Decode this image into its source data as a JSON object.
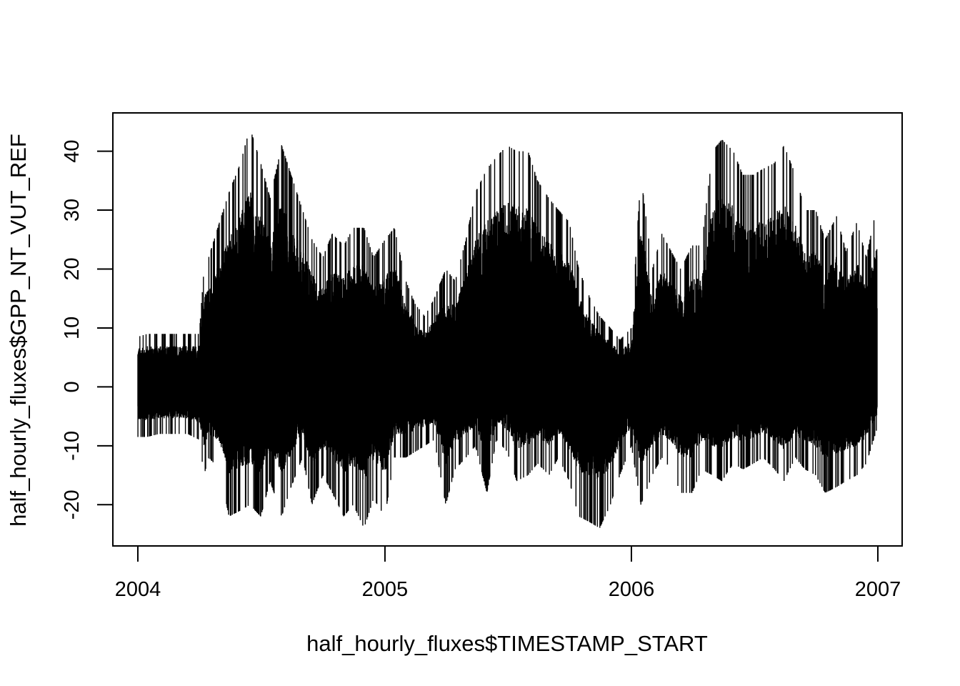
{
  "chart_data": {
    "type": "line",
    "title": "",
    "xlabel": "half_hourly_fluxes$TIMESTAMP_START",
    "ylabel": "half_hourly_fluxes$GPP_NT_VUT_REF",
    "xlim": [
      "2003-11-25",
      "2007-02-06"
    ],
    "ylim": [
      -27.0,
      46.5
    ],
    "x_ticks": [
      {
        "value": "2004-01-01",
        "label": "2004"
      },
      {
        "value": "2005-01-01",
        "label": "2005"
      },
      {
        "value": "2006-01-01",
        "label": "2006"
      },
      {
        "value": "2007-01-01",
        "label": "2007"
      }
    ],
    "y_ticks": [
      -20,
      -10,
      0,
      10,
      20,
      30,
      40
    ],
    "grid": false,
    "legend": "none",
    "color": "#000000",
    "series": [
      {
        "values_note_free": true,
        "x": [
          "2004-01-01",
          "2004-01-15",
          "2004-02-01",
          "2004-02-15",
          "2004-03-01",
          "2004-03-15",
          "2004-04-01",
          "2004-04-08",
          "2004-04-15",
          "2004-05-01",
          "2004-05-15",
          "2004-06-01",
          "2004-06-15",
          "2004-07-01",
          "2004-07-15",
          "2004-08-01",
          "2004-08-15",
          "2004-09-01",
          "2004-09-15",
          "2004-10-01",
          "2004-10-15",
          "2004-11-01",
          "2004-11-15",
          "2004-12-01",
          "2004-12-15",
          "2005-01-01",
          "2005-01-15",
          "2005-02-01",
          "2005-02-15",
          "2005-03-01",
          "2005-03-15",
          "2005-04-01",
          "2005-04-15",
          "2005-05-01",
          "2005-05-15",
          "2005-06-01",
          "2005-06-15",
          "2005-07-01",
          "2005-07-15",
          "2005-08-01",
          "2005-08-15",
          "2005-09-01",
          "2005-09-15",
          "2005-10-01",
          "2005-10-15",
          "2005-11-01",
          "2005-11-15",
          "2005-12-01",
          "2005-12-15",
          "2006-01-01",
          "2006-01-15",
          "2006-02-01",
          "2006-02-15",
          "2006-03-01",
          "2006-03-15",
          "2006-04-01",
          "2006-04-15",
          "2006-05-01",
          "2006-05-15",
          "2006-06-01",
          "2006-06-15",
          "2006-07-01",
          "2006-07-15",
          "2006-08-01",
          "2006-08-15",
          "2006-09-01",
          "2006-09-15",
          "2006-10-01",
          "2006-10-15",
          "2006-11-01",
          "2006-11-15",
          "2006-12-01",
          "2006-12-15",
          "2006-12-31"
        ],
        "max": [
          8.5,
          9,
          9,
          9,
          9,
          9,
          9,
          20,
          22,
          28,
          33,
          38,
          44,
          38,
          32,
          41,
          36,
          30,
          25,
          22,
          26,
          24,
          27,
          27,
          22,
          25,
          27,
          18,
          14,
          12,
          15,
          20,
          18,
          25,
          33,
          37,
          39,
          41,
          40,
          40,
          35,
          32,
          30,
          28,
          20,
          15,
          12,
          10,
          8,
          10,
          36,
          20,
          26,
          23,
          20,
          24,
          24,
          40,
          42,
          40,
          36,
          36,
          37,
          38,
          41,
          36,
          30,
          30,
          25,
          29,
          23,
          28,
          22,
          31
        ],
        "min": [
          -8.5,
          -8.5,
          -8,
          -8,
          -8,
          -8,
          -9,
          -15,
          -12,
          -14,
          -22,
          -21,
          -20,
          -22,
          -16,
          -22,
          -17,
          -12,
          -20,
          -15,
          -18,
          -22,
          -20,
          -24,
          -19,
          -22,
          -12,
          -12,
          -11,
          -10,
          -9,
          -20,
          -14,
          -12,
          -10,
          -18,
          -9,
          -11,
          -16,
          -15,
          -13,
          -15,
          -12,
          -16,
          -22,
          -23,
          -24,
          -20,
          -15,
          -10,
          -20,
          -15,
          -12,
          -14,
          -18,
          -18,
          -14,
          -15,
          -16,
          -13,
          -14,
          -13,
          -12,
          -14,
          -16,
          -12,
          -14,
          -15,
          -18,
          -17,
          -16,
          -15,
          -13,
          -7
        ]
      }
    ]
  }
}
